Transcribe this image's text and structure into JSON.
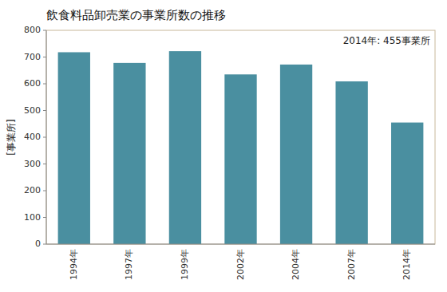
{
  "chart_data": {
    "type": "bar",
    "title": "飲食料品卸売業の事業所数の推移",
    "ylabel": "[事業所]",
    "annotation": "2014年: 455事業所",
    "categories": [
      "1994年",
      "1997年",
      "1999年",
      "2002年",
      "2004年",
      "2007年",
      "2014年"
    ],
    "values": [
      718,
      678,
      722,
      635,
      672,
      609,
      455
    ],
    "color": "#4a8fa0",
    "ylim": [
      0,
      800
    ],
    "yticks": [
      0,
      100,
      200,
      300,
      400,
      500,
      600,
      700,
      800
    ],
    "grid": false
  }
}
